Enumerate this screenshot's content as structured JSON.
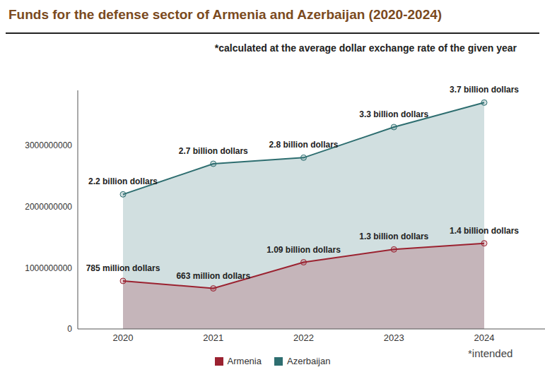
{
  "chart_data": {
    "type": "area",
    "title": "Funds for the defense sector of Armenia and Azerbaijan (2020-2024)",
    "subtitle": "*calculated at the average dollar exchange rate of the given year",
    "annotations": [
      "*intended"
    ],
    "categories": [
      "2020",
      "2021",
      "2022",
      "2023",
      "2024"
    ],
    "series": [
      {
        "name": "Armenia",
        "color": "#9b2230",
        "marker": "circle",
        "values": [
          785000000,
          663000000,
          1090000000,
          1300000000,
          1400000000
        ],
        "value_labels": [
          "785 million dollars",
          "663 million dollars",
          "1.09 billion dollars",
          "1.3 billion dollars",
          "1.4 billion dollars"
        ]
      },
      {
        "name": "Azerbaijan",
        "color": "#2e6e70",
        "marker": "circle",
        "values": [
          2200000000,
          2700000000,
          2800000000,
          3300000000,
          3700000000
        ],
        "value_labels": [
          "2.2 billion dollars",
          "2.7 billion dollars",
          "2.8 billion dollars",
          "3.3 billion dollars",
          "3.7 billion dollars"
        ]
      }
    ],
    "ylim": [
      0,
      3900000000
    ],
    "yticks": [
      0,
      1000000000,
      2000000000,
      3000000000
    ],
    "grid": false,
    "legend": "bottom",
    "data_labels": true
  }
}
